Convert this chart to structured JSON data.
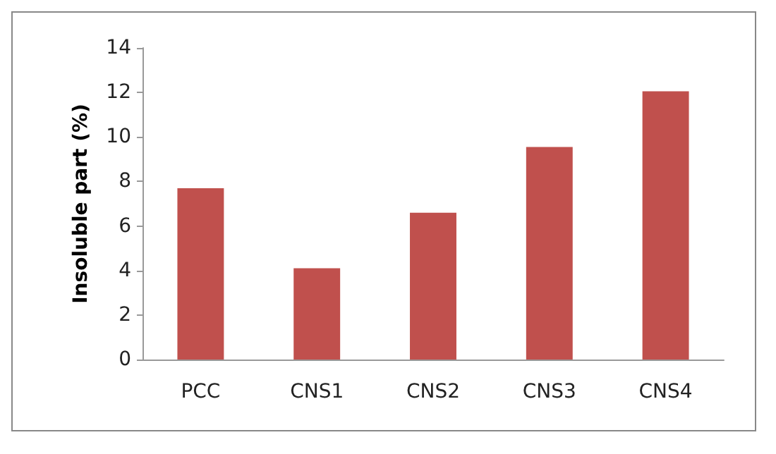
{
  "chart_data": {
    "type": "bar",
    "ylabel": "Insoluble part (%)",
    "categories": [
      "PCC",
      "CNS1",
      "CNS2",
      "CNS3",
      "CNS4"
    ],
    "values": [
      7.7,
      4.1,
      6.6,
      9.55,
      12.05
    ],
    "color": "#c0504d",
    "ylim": [
      0,
      14
    ],
    "yticks": [
      0,
      2,
      4,
      6,
      8,
      10,
      12,
      14
    ],
    "grid": false
  }
}
